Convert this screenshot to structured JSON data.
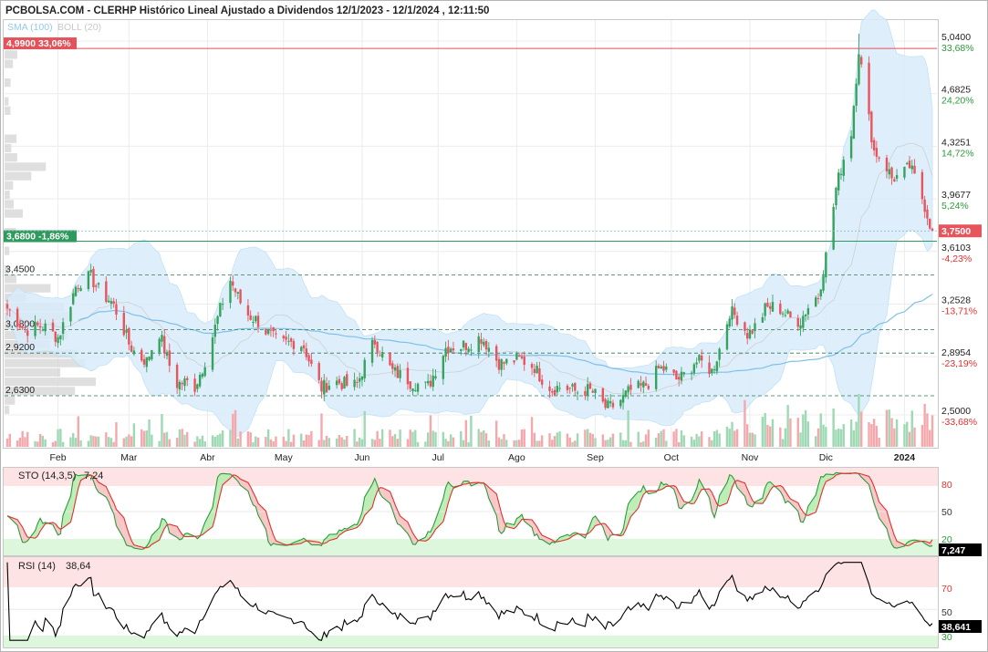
{
  "header": {
    "title": "PCBOLSA.COM - CLERHP Histórico Lineal Ajustado a Dividendos 12/1/2023 - 12/1/2024 , 12:11:50",
    "indicators": [
      {
        "label": "SMA (100)",
        "color": "#93c9ee"
      },
      {
        "label": "BOLL (20)",
        "color": "#c9c9c9"
      }
    ]
  },
  "colors": {
    "up": "#35a35d",
    "down": "#e8545c",
    "sma": "#7ec0ea",
    "boll_fill": "#d9edfb",
    "stoch_k": "#2d9a3a",
    "stoch_d": "#e0312f",
    "rsi": "#000000",
    "top_line": "#e4525a",
    "last_line": "#2f9a5e"
  },
  "price_panel": {
    "y_ticks": [
      {
        "value": "5,0400",
        "pct": "33,68%"
      },
      {
        "value": "4,6825",
        "pct": "24,20%"
      },
      {
        "value": "4,3251",
        "pct": "14,72%"
      },
      {
        "value": "3,9677",
        "pct": "5,24%"
      },
      {
        "value": "3,6103",
        "pct": "-4,23%"
      },
      {
        "value": "3,2528",
        "pct": "-13,71%"
      },
      {
        "value": "2,8954",
        "pct": "-23,19%"
      },
      {
        "value": "2,5000",
        "pct": "-33,68%"
      }
    ],
    "top_marker": {
      "label": "4,9900 33,06%",
      "value": 4.99
    },
    "last_marker": {
      "label": "3,6800 -1,86%",
      "value": 3.68
    },
    "current_price": {
      "label": "3,7500",
      "value": 3.75
    },
    "support_levels": [
      {
        "label": "3,4500",
        "value": 3.45
      },
      {
        "label": "3,0800",
        "value": 3.08
      },
      {
        "label": "2,9200",
        "value": 2.92
      },
      {
        "label": "2,6300",
        "value": 2.63
      }
    ],
    "x_labels": [
      "Feb",
      "Mar",
      "Abr",
      "May",
      "Jun",
      "Jul",
      "Ago",
      "Sep",
      "Oct",
      "Nov",
      "Dic",
      "2024"
    ]
  },
  "stoch_panel": {
    "label": "STO (14,3,5)",
    "value": "7,24",
    "badge": "7,247",
    "levels": [
      "80",
      "50",
      "20"
    ]
  },
  "rsi_panel": {
    "label": "RSI (14)",
    "value": "38,64",
    "badge": "38,641",
    "levels": [
      "70",
      "50",
      "30"
    ]
  },
  "chart_data": {
    "type": "candlestick",
    "title": "PCBOLSA.COM - CLERHP Histórico Lineal Ajustado a Dividendos 12/1/2023 - 12/1/2024 , 12:11:50",
    "ylim": [
      2.5,
      5.04
    ],
    "x_months": [
      "Feb",
      "Mar",
      "Abr",
      "May",
      "Jun",
      "Jul",
      "Ago",
      "Sep",
      "Oct",
      "Nov",
      "Dic",
      "2024"
    ],
    "close_anchors": [
      {
        "date": "2023-01-12",
        "close": 3.2
      },
      {
        "date": "2023-01-20",
        "close": 3.1
      },
      {
        "date": "2023-02-01",
        "close": 3.05
      },
      {
        "date": "2023-02-08",
        "close": 3.35
      },
      {
        "date": "2023-02-14",
        "close": 3.45
      },
      {
        "date": "2023-02-22",
        "close": 3.25
      },
      {
        "date": "2023-03-01",
        "close": 3.0
      },
      {
        "date": "2023-03-08",
        "close": 2.85
      },
      {
        "date": "2023-03-13",
        "close": 3.05
      },
      {
        "date": "2023-03-20",
        "close": 2.72
      },
      {
        "date": "2023-03-27",
        "close": 2.68
      },
      {
        "date": "2023-04-03",
        "close": 3.05
      },
      {
        "date": "2023-04-10",
        "close": 3.4
      },
      {
        "date": "2023-04-17",
        "close": 3.2
      },
      {
        "date": "2023-04-24",
        "close": 3.05
      },
      {
        "date": "2023-05-02",
        "close": 3.0
      },
      {
        "date": "2023-05-09",
        "close": 2.95
      },
      {
        "date": "2023-05-16",
        "close": 2.7
      },
      {
        "date": "2023-05-23",
        "close": 2.7
      },
      {
        "date": "2023-05-30",
        "close": 2.73
      },
      {
        "date": "2023-06-06",
        "close": 2.98
      },
      {
        "date": "2023-06-13",
        "close": 2.82
      },
      {
        "date": "2023-06-20",
        "close": 2.7
      },
      {
        "date": "2023-06-27",
        "close": 2.72
      },
      {
        "date": "2023-07-04",
        "close": 2.93
      },
      {
        "date": "2023-07-11",
        "close": 3.0
      },
      {
        "date": "2023-07-18",
        "close": 3.0
      },
      {
        "date": "2023-07-25",
        "close": 2.88
      },
      {
        "date": "2023-08-01",
        "close": 2.85
      },
      {
        "date": "2023-08-08",
        "close": 2.85
      },
      {
        "date": "2023-08-15",
        "close": 2.65
      },
      {
        "date": "2023-08-22",
        "close": 2.7
      },
      {
        "date": "2023-08-29",
        "close": 2.65
      },
      {
        "date": "2023-09-05",
        "close": 2.57
      },
      {
        "date": "2023-09-12",
        "close": 2.6
      },
      {
        "date": "2023-09-19",
        "close": 2.7
      },
      {
        "date": "2023-09-26",
        "close": 2.8
      },
      {
        "date": "2023-10-03",
        "close": 2.75
      },
      {
        "date": "2023-10-10",
        "close": 2.85
      },
      {
        "date": "2023-10-17",
        "close": 2.8
      },
      {
        "date": "2023-10-24",
        "close": 3.2
      },
      {
        "date": "2023-10-31",
        "close": 3.05
      },
      {
        "date": "2023-11-07",
        "close": 3.22
      },
      {
        "date": "2023-11-14",
        "close": 3.2
      },
      {
        "date": "2023-11-21",
        "close": 3.15
      },
      {
        "date": "2023-11-28",
        "close": 3.3
      },
      {
        "date": "2023-12-01",
        "close": 3.6
      },
      {
        "date": "2023-12-05",
        "close": 4.05
      },
      {
        "date": "2023-12-11",
        "close": 4.4
      },
      {
        "date": "2023-12-14",
        "close": 4.99
      },
      {
        "date": "2023-12-20",
        "close": 4.3
      },
      {
        "date": "2023-12-27",
        "close": 4.1
      },
      {
        "date": "2024-01-03",
        "close": 4.2
      },
      {
        "date": "2024-01-08",
        "close": 3.95
      },
      {
        "date": "2024-01-12",
        "close": 3.75
      }
    ],
    "stoch_last": 7.247,
    "rsi_last": 38.641
  }
}
